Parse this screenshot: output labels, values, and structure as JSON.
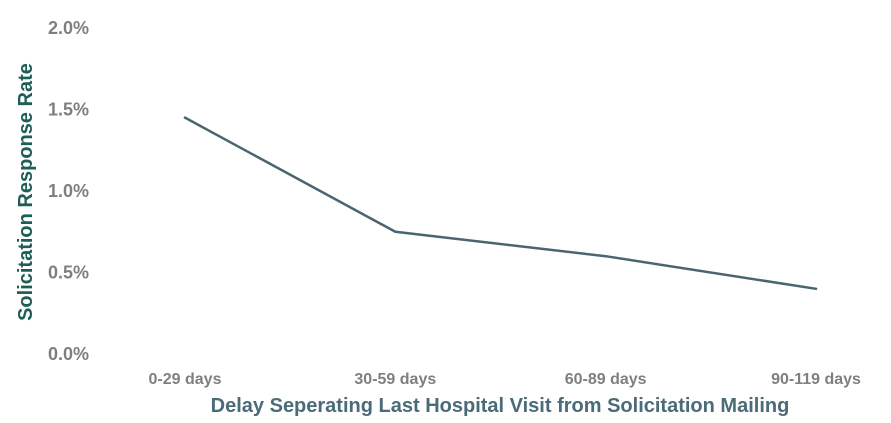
{
  "chart_data": {
    "type": "line",
    "title": "",
    "xlabel": "Delay Seperating Last Hospital Visit from Solicitation Mailing",
    "ylabel": "Solicitation Response Rate",
    "categories": [
      "0-29 days",
      "30-59 days",
      "60-89 days",
      "90-119 days"
    ],
    "series": [
      {
        "values": [
          1.45,
          0.75,
          0.6,
          0.4
        ]
      }
    ],
    "ylim": [
      0,
      2.0
    ],
    "yticks": [
      0.0,
      0.5,
      1.0,
      1.5,
      2.0
    ],
    "ytick_labels": [
      "0.0%",
      "0.5%",
      "1.0%",
      "1.5%",
      "2.0%"
    ],
    "grid": false,
    "legend": "none",
    "colors": {
      "line": "#4a6570",
      "tick_labels": "#7f7f7f",
      "xlabel": "#4a6b78",
      "ylabel": "#1f5e57"
    }
  }
}
